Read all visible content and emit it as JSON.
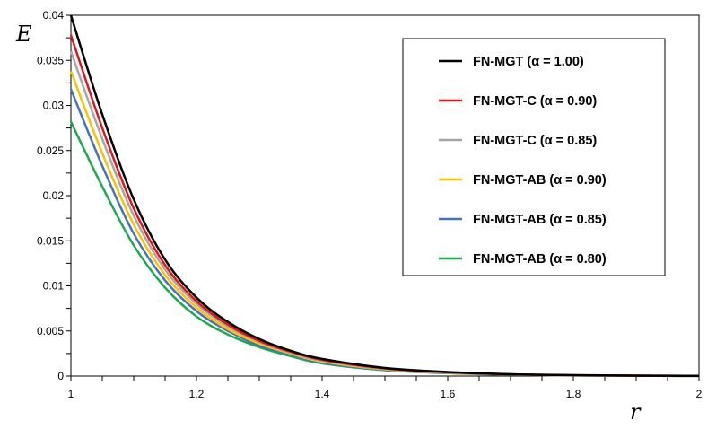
{
  "chart_data": {
    "type": "line",
    "title": "",
    "xlabel": "r",
    "ylabel": "E",
    "xlim": [
      1,
      2
    ],
    "ylim": [
      0,
      0.04
    ],
    "x_ticks": [
      "1",
      "1.2",
      "1.4",
      "1.6",
      "1.8",
      "2"
    ],
    "y_ticks": [
      "0",
      "0.005",
      "0.01",
      "0.015",
      "0.02",
      "0.025",
      "0.03",
      "0.035",
      "0.04"
    ],
    "grid": false,
    "legend_position": "top-right",
    "x": [
      1.0,
      1.05,
      1.1,
      1.15,
      1.2,
      1.25,
      1.3,
      1.35,
      1.4,
      1.5,
      1.6,
      1.7,
      1.8,
      1.9,
      2.0
    ],
    "series": [
      {
        "name": "FN-MGT (α = 1.00)",
        "color": "#000000",
        "values": [
          0.04,
          0.029,
          0.0196,
          0.0129,
          0.0087,
          0.006,
          0.0041,
          0.0028,
          0.0019,
          0.0009,
          0.00045,
          0.0002,
          0.0001,
          5e-05,
          2e-05
        ]
      },
      {
        "name": "FN-MGT-C (α = 0.90)",
        "color": "#e0161b",
        "values": [
          0.0378,
          0.0275,
          0.0186,
          0.0123,
          0.0083,
          0.0057,
          0.0039,
          0.0027,
          0.0018,
          0.00085,
          0.00042,
          0.00019,
          9e-05,
          4e-05,
          2e-05
        ]
      },
      {
        "name": "FN-MGT-C (α = 0.85)",
        "color": "#a6a6a6",
        "values": [
          0.036,
          0.0263,
          0.0178,
          0.0118,
          0.008,
          0.0055,
          0.0038,
          0.0026,
          0.0017,
          0.0008,
          0.0004,
          0.00018,
          8e-05,
          4e-05,
          2e-05
        ]
      },
      {
        "name": "FN-MGT-AB (α = 0.90)",
        "color": "#ffc000",
        "values": [
          0.0338,
          0.0247,
          0.0168,
          0.0112,
          0.0076,
          0.0052,
          0.0036,
          0.0025,
          0.0016,
          0.00075,
          0.00037,
          0.00017,
          8e-05,
          3e-05,
          1e-05
        ]
      },
      {
        "name": "FN-MGT-AB (α = 0.85)",
        "color": "#4472c4",
        "values": [
          0.0318,
          0.0233,
          0.0158,
          0.0106,
          0.0072,
          0.005,
          0.0034,
          0.0024,
          0.0015,
          0.0007,
          0.00035,
          0.00016,
          7e-05,
          3e-05,
          1e-05
        ]
      },
      {
        "name": "FN-MGT-AB (α = 0.80)",
        "color": "#1fa84f",
        "values": [
          0.0282,
          0.021,
          0.0145,
          0.0098,
          0.0066,
          0.0046,
          0.0032,
          0.0022,
          0.0014,
          0.00065,
          0.00032,
          0.00015,
          7e-05,
          3e-05,
          1e-05
        ]
      }
    ]
  }
}
